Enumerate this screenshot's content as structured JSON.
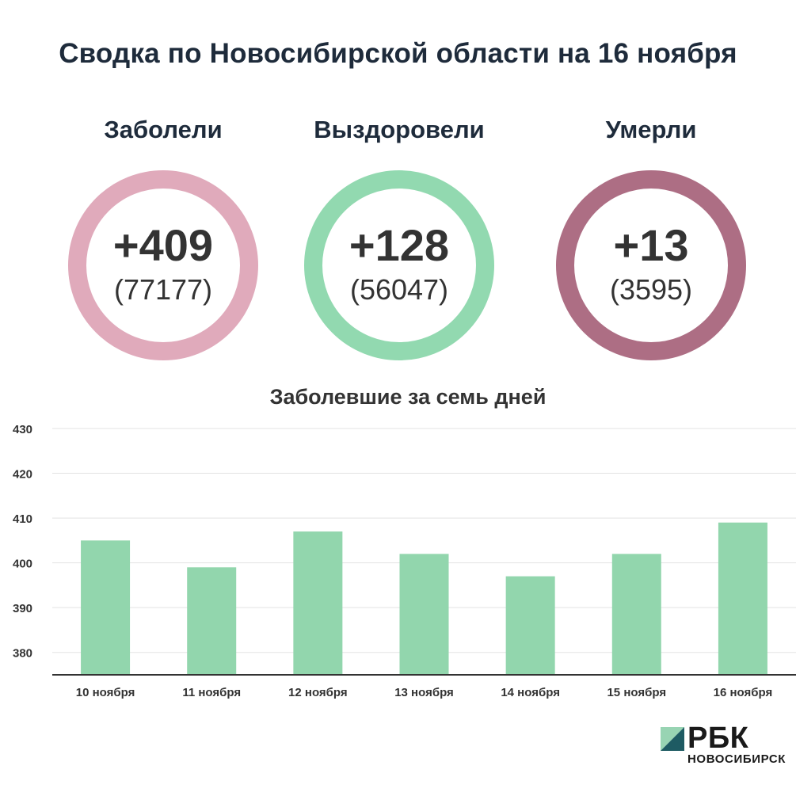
{
  "title": "Сводка по Новосибирской области на 16 ноября",
  "stats": [
    {
      "label": "Заболели",
      "delta": "+409",
      "total": "(77177)",
      "color": "#e0aabb"
    },
    {
      "label": "Выздоровели",
      "delta": "+128",
      "total": "(56047)",
      "color": "#92d9b0"
    },
    {
      "label": "Умерли",
      "delta": "+13",
      "total": "(3595)",
      "color": "#ad6e84"
    }
  ],
  "chart_data": {
    "type": "bar",
    "title": "Заболевшие за семь дней",
    "categories": [
      "10 ноября",
      "11 ноября",
      "12 ноября",
      "13 ноября",
      "14 ноября",
      "15 ноября",
      "16 ноября"
    ],
    "values": [
      405,
      399,
      407,
      402,
      397,
      402,
      409
    ],
    "ylim": [
      375,
      430
    ],
    "yticks": [
      380,
      390,
      400,
      410,
      420,
      430
    ],
    "grid": true,
    "bar_color": "#92d6ad",
    "xlabel": "",
    "ylabel": ""
  },
  "logo": {
    "word": "РБК",
    "sub": "НОВОСИБИРСК",
    "mark_light": "#98d4b3",
    "mark_dark": "#1e5b63"
  }
}
